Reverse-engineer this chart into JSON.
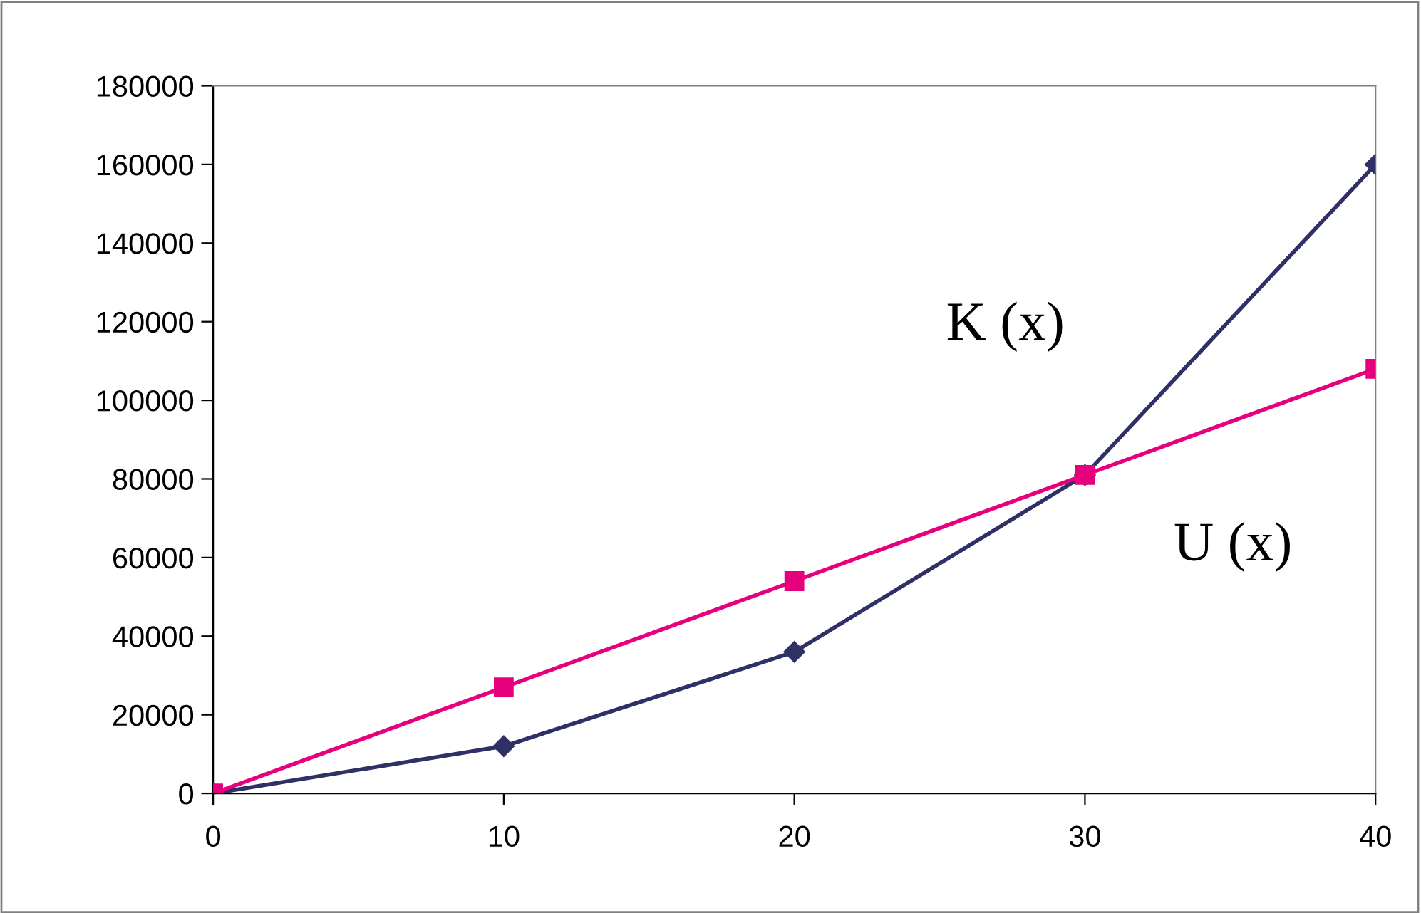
{
  "chart_data": {
    "type": "line",
    "x": [
      0,
      10,
      20,
      30,
      40
    ],
    "series": [
      {
        "name": "K (x)",
        "color": "#2e3066",
        "values": [
          0,
          12000,
          36000,
          81000,
          160000
        ],
        "marker": "diamond"
      },
      {
        "name": "U (x)",
        "color": "#e6007e",
        "values": [
          0,
          27000,
          54000,
          81000,
          108000
        ],
        "marker": "square"
      }
    ],
    "xlim": [
      0,
      40
    ],
    "xticks": [
      0,
      10,
      20,
      30,
      40
    ],
    "ylim": [
      0,
      180000
    ],
    "yticks": [
      0,
      20000,
      40000,
      60000,
      80000,
      100000,
      120000,
      140000,
      160000,
      180000
    ],
    "grid": false,
    "legend": false,
    "line_style": "solid"
  }
}
